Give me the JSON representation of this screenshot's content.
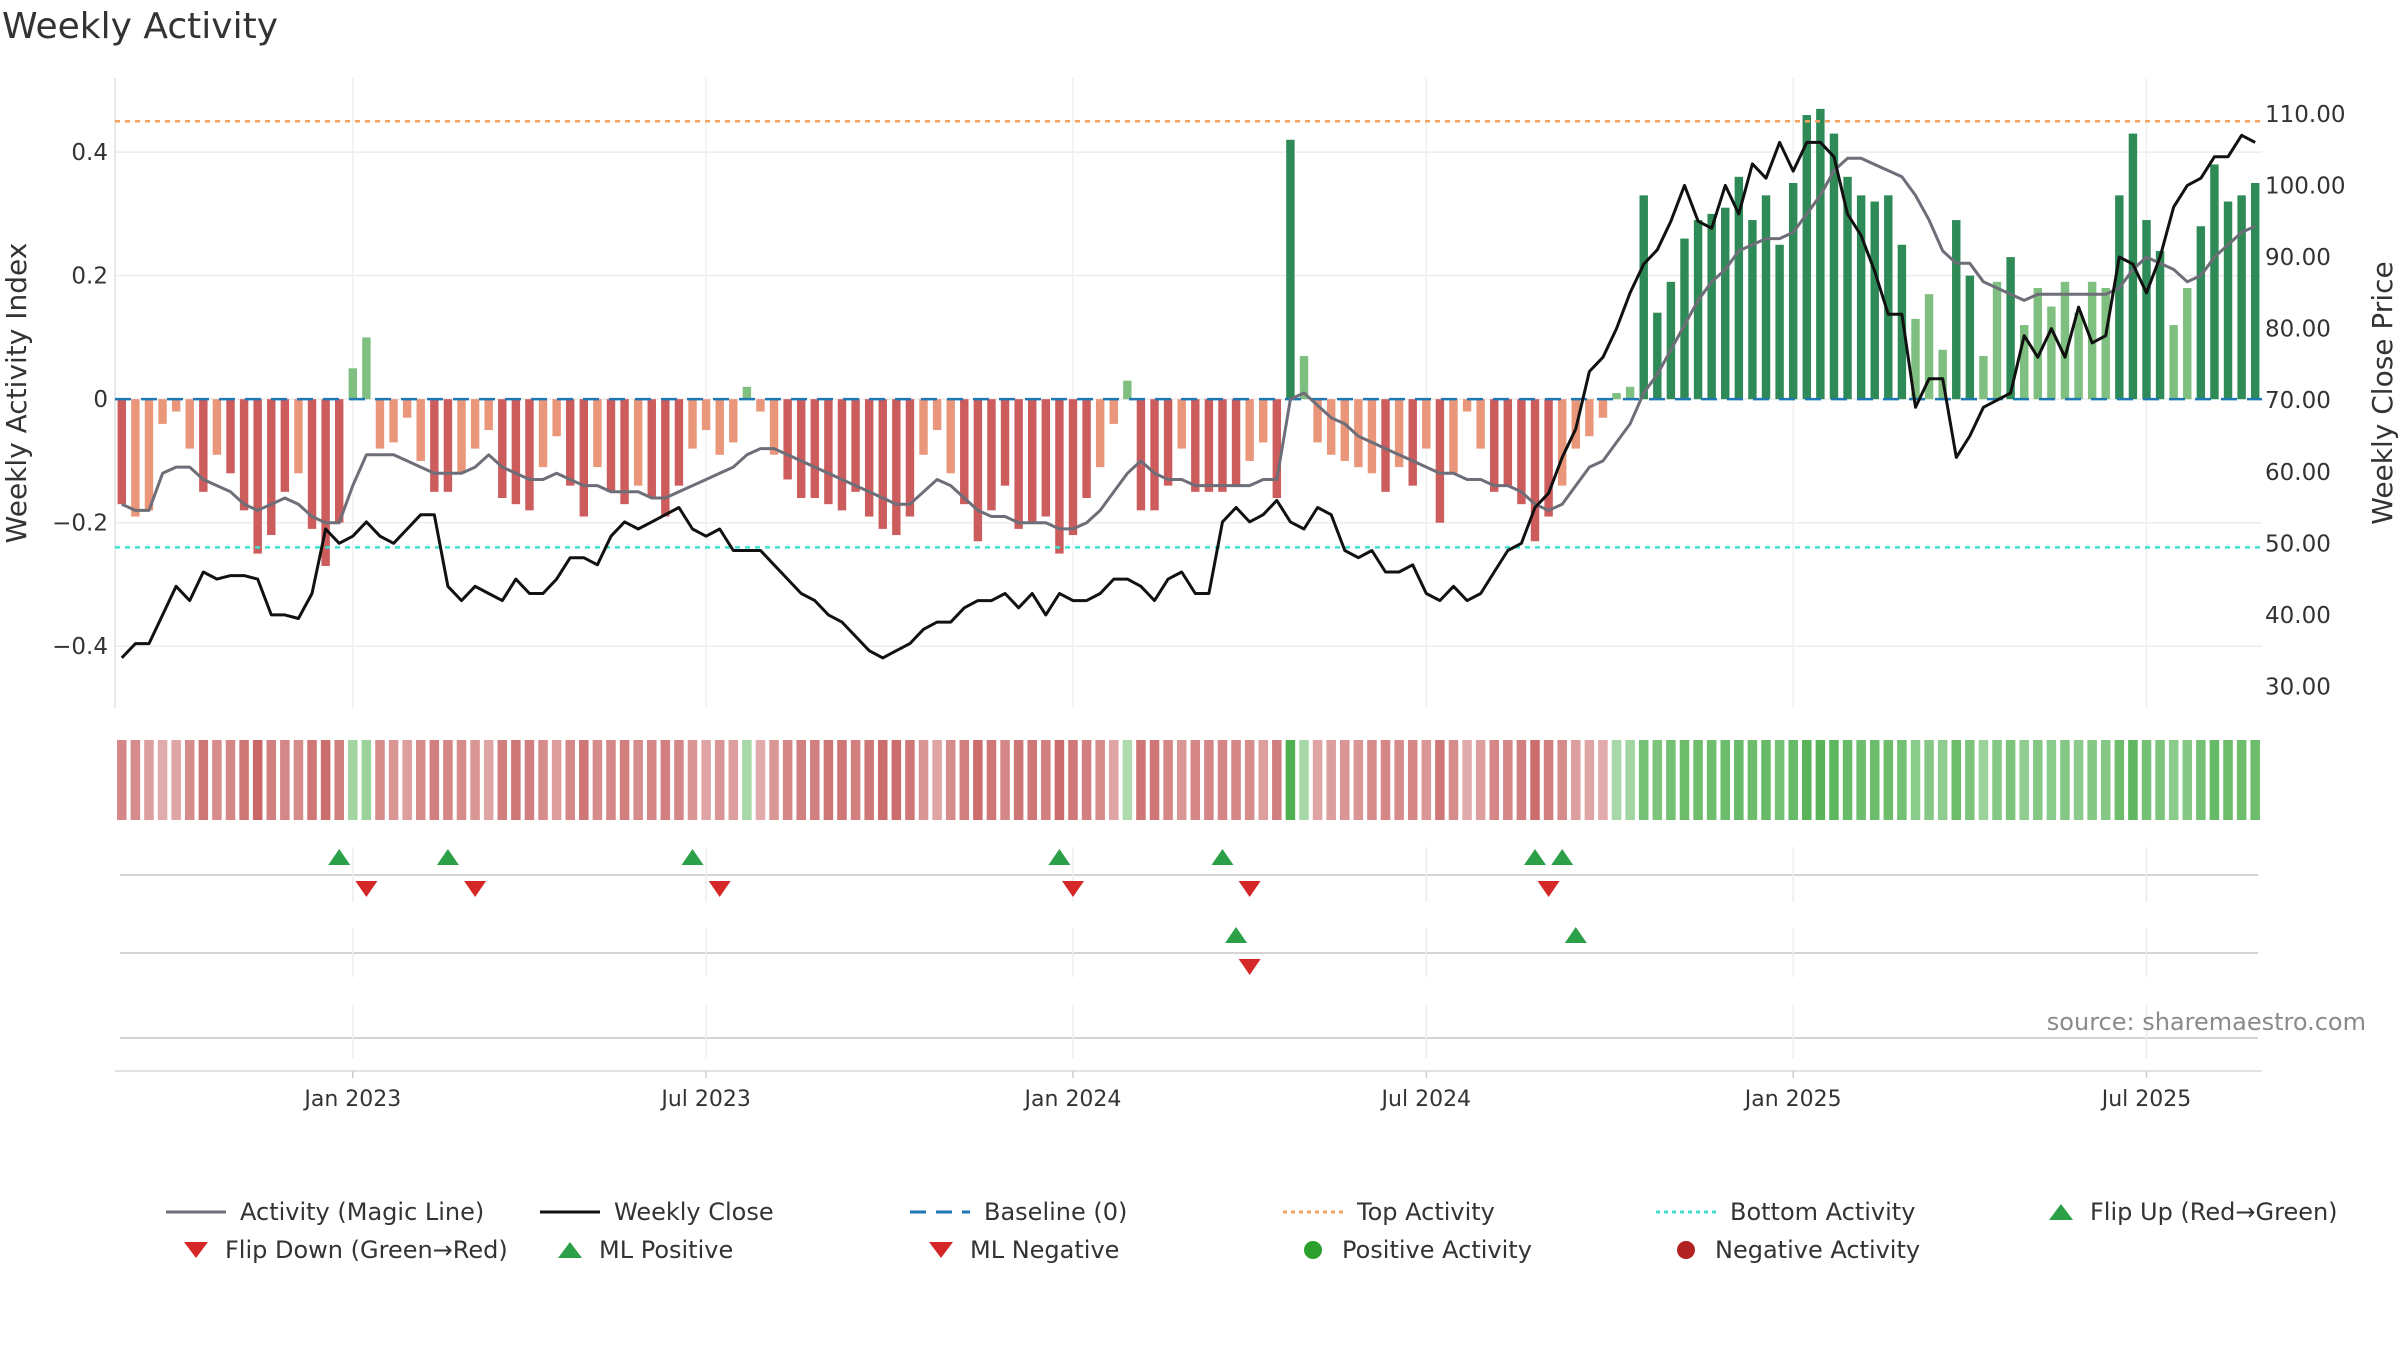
{
  "title": "Weekly Activity",
  "source": "source: sharemaestro.com",
  "colors": {
    "strong_green": "#2e8b57",
    "light_green": "#7fbf7f",
    "strong_red": "#cd5c5c",
    "light_red": "#e9967a",
    "magic_line": "#6e6e78",
    "close_line": "#111111",
    "baseline": "#1f77b4",
    "top": "#f4a460",
    "bottom": "#40e0d0",
    "up_marker": "#2ca048",
    "down_marker": "#d62728"
  },
  "chart_data": {
    "type": "bar",
    "title": "Weekly Activity",
    "ylabel": "Weekly Activity Index",
    "y2label": "Weekly Close Price",
    "ylim": [
      -0.5,
      0.52
    ],
    "y2lim": [
      27,
      115
    ],
    "yticks": [
      -0.4,
      -0.2,
      0,
      0.2,
      0.4
    ],
    "ytick_labels": [
      "−0.4",
      "−0.2",
      "0",
      "0.2",
      "0.4"
    ],
    "y2ticks": [
      30,
      40,
      50,
      60,
      70,
      80,
      90,
      100,
      110
    ],
    "y2tick_labels": [
      "30.00",
      "40.00",
      "50.00",
      "60.00",
      "70.00",
      "80.00",
      "90.00",
      "100.00",
      "110.00"
    ],
    "xtick_labels": [
      "Jan 2023",
      "Jul 2023",
      "Jan 2024",
      "Jul 2024",
      "Jan 2025",
      "Jul 2025"
    ],
    "xtick_weeks": [
      17,
      43,
      70,
      96,
      123,
      149
    ],
    "top_activity": 0.45,
    "bottom_activity": -0.24,
    "baseline": 0,
    "activity": [
      -0.17,
      -0.19,
      -0.18,
      -0.04,
      -0.02,
      -0.08,
      -0.15,
      -0.09,
      -0.12,
      -0.18,
      -0.25,
      -0.22,
      -0.15,
      -0.12,
      -0.21,
      -0.27,
      -0.2,
      0.05,
      0.1,
      -0.08,
      -0.07,
      -0.03,
      -0.1,
      -0.15,
      -0.15,
      -0.12,
      -0.08,
      -0.05,
      -0.16,
      -0.17,
      -0.18,
      -0.11,
      -0.06,
      -0.14,
      -0.19,
      -0.11,
      -0.15,
      -0.17,
      -0.14,
      -0.16,
      -0.19,
      -0.14,
      -0.08,
      -0.05,
      -0.09,
      -0.07,
      0.02,
      -0.02,
      -0.09,
      -0.13,
      -0.16,
      -0.16,
      -0.17,
      -0.18,
      -0.15,
      -0.19,
      -0.21,
      -0.22,
      -0.19,
      -0.09,
      -0.05,
      -0.12,
      -0.17,
      -0.23,
      -0.18,
      -0.14,
      -0.21,
      -0.2,
      -0.19,
      -0.25,
      -0.22,
      -0.16,
      -0.11,
      -0.04,
      0.03,
      -0.18,
      -0.18,
      -0.14,
      -0.08,
      -0.15,
      -0.15,
      -0.15,
      -0.14,
      -0.1,
      -0.07,
      -0.16,
      0.42,
      0.07,
      -0.07,
      -0.09,
      -0.1,
      -0.11,
      -0.12,
      -0.15,
      -0.11,
      -0.14,
      -0.08,
      -0.2,
      -0.12,
      -0.02,
      -0.08,
      -0.15,
      -0.14,
      -0.17,
      -0.23,
      -0.19,
      -0.14,
      -0.08,
      -0.06,
      -0.03,
      0.01,
      0.02,
      0.33,
      0.14,
      0.19,
      0.26,
      0.29,
      0.3,
      0.31,
      0.36,
      0.29,
      0.33,
      0.25,
      0.35,
      0.46,
      0.47,
      0.43,
      0.36,
      0.33,
      0.32,
      0.33,
      0.25,
      0.13,
      0.17,
      0.08,
      0.29,
      0.2,
      0.07,
      0.19,
      0.23,
      0.12,
      0.18,
      0.15,
      0.19,
      0.14,
      0.19,
      0.18,
      0.33,
      0.43,
      0.29,
      0.24,
      0.12,
      0.18,
      0.28,
      0.38,
      0.32,
      0.33,
      0.35
    ],
    "magic_line": [
      -0.17,
      -0.18,
      -0.18,
      -0.12,
      -0.11,
      -0.11,
      -0.13,
      -0.14,
      -0.15,
      -0.17,
      -0.18,
      -0.17,
      -0.16,
      -0.17,
      -0.19,
      -0.2,
      -0.2,
      -0.14,
      -0.09,
      -0.09,
      -0.09,
      -0.1,
      -0.11,
      -0.12,
      -0.12,
      -0.12,
      -0.11,
      -0.09,
      -0.11,
      -0.12,
      -0.13,
      -0.13,
      -0.12,
      -0.13,
      -0.14,
      -0.14,
      -0.15,
      -0.15,
      -0.15,
      -0.16,
      -0.16,
      -0.15,
      -0.14,
      -0.13,
      -0.12,
      -0.11,
      -0.09,
      -0.08,
      -0.08,
      -0.09,
      -0.1,
      -0.11,
      -0.12,
      -0.13,
      -0.14,
      -0.15,
      -0.16,
      -0.17,
      -0.17,
      -0.15,
      -0.13,
      -0.14,
      -0.16,
      -0.18,
      -0.19,
      -0.19,
      -0.2,
      -0.2,
      -0.2,
      -0.21,
      -0.21,
      -0.2,
      -0.18,
      -0.15,
      -0.12,
      -0.1,
      -0.12,
      -0.13,
      -0.13,
      -0.14,
      -0.14,
      -0.14,
      -0.14,
      -0.14,
      -0.13,
      -0.13,
      0,
      0.01,
      -0.01,
      -0.03,
      -0.04,
      -0.06,
      -0.07,
      -0.08,
      -0.09,
      -0.1,
      -0.11,
      -0.12,
      -0.12,
      -0.13,
      -0.13,
      -0.14,
      -0.14,
      -0.15,
      -0.17,
      -0.18,
      -0.17,
      -0.14,
      -0.11,
      -0.1,
      -0.07,
      -0.04,
      0.01,
      0.04,
      0.08,
      0.12,
      0.16,
      0.19,
      0.21,
      0.24,
      0.25,
      0.26,
      0.26,
      0.27,
      0.3,
      0.33,
      0.37,
      0.39,
      0.39,
      0.38,
      0.37,
      0.36,
      0.33,
      0.29,
      0.24,
      0.22,
      0.22,
      0.19,
      0.18,
      0.17,
      0.16,
      0.17,
      0.17,
      0.17,
      0.17,
      0.17,
      0.17,
      0.18,
      0.21,
      0.23,
      0.22,
      0.21,
      0.19,
      0.2,
      0.23,
      0.25,
      0.27,
      0.28
    ],
    "weekly_close": [
      34,
      36,
      36,
      40,
      44,
      42,
      46,
      45,
      45.5,
      45.5,
      45,
      40,
      40,
      39.5,
      43,
      52,
      50,
      51,
      53,
      51,
      50,
      52,
      54,
      54,
      44,
      42,
      44,
      43,
      42,
      45,
      43,
      43,
      45,
      48,
      48,
      47,
      51,
      53,
      52,
      53,
      54,
      55,
      52,
      51,
      52,
      49,
      49,
      49,
      47,
      45,
      43,
      42,
      40,
      39,
      37,
      35,
      34,
      35,
      36,
      38,
      39,
      39,
      41,
      42,
      42,
      43,
      41,
      43,
      40,
      43,
      42,
      42,
      43,
      45,
      45,
      44,
      42,
      45,
      46,
      43,
      43,
      53,
      55,
      53,
      54,
      56,
      53,
      52,
      55,
      54,
      49,
      48,
      49,
      46,
      46,
      47,
      43,
      42,
      44,
      42,
      43,
      46,
      49,
      50,
      55,
      57,
      62,
      66,
      74,
      76,
      80,
      85,
      89,
      91,
      95,
      100,
      95,
      94,
      100,
      96,
      103,
      101,
      106,
      102,
      106,
      106,
      104,
      96,
      93,
      88,
      82,
      82,
      69,
      73,
      73,
      62,
      65,
      69,
      70,
      71,
      79,
      76,
      80,
      76,
      83,
      78,
      79,
      90,
      89,
      85,
      90,
      97,
      100,
      101,
      104,
      104,
      107,
      106
    ],
    "activity_strength": [
      0.5,
      0.45,
      0.35,
      0.25,
      0.3,
      0.45,
      0.6,
      0.45,
      0.5,
      0.6,
      0.7,
      0.55,
      0.5,
      0.45,
      0.6,
      0.65,
      0.55,
      0.35,
      0.4,
      0.45,
      0.4,
      0.35,
      0.45,
      0.55,
      0.5,
      0.45,
      0.4,
      0.3,
      0.55,
      0.6,
      0.55,
      0.45,
      0.35,
      0.5,
      0.6,
      0.45,
      0.5,
      0.55,
      0.45,
      0.5,
      0.55,
      0.5,
      0.4,
      0.3,
      0.4,
      0.35,
      0.3,
      0.25,
      0.4,
      0.5,
      0.55,
      0.55,
      0.6,
      0.6,
      0.55,
      0.6,
      0.65,
      0.65,
      0.6,
      0.4,
      0.3,
      0.45,
      0.55,
      0.65,
      0.6,
      0.5,
      0.6,
      0.6,
      0.55,
      0.65,
      0.6,
      0.55,
      0.45,
      0.3,
      0.25,
      0.6,
      0.6,
      0.5,
      0.4,
      0.5,
      0.5,
      0.5,
      0.5,
      0.45,
      0.35,
      0.55,
      0.9,
      0.3,
      0.3,
      0.35,
      0.4,
      0.4,
      0.45,
      0.5,
      0.45,
      0.5,
      0.4,
      0.6,
      0.45,
      0.25,
      0.35,
      0.5,
      0.5,
      0.55,
      0.65,
      0.55,
      0.45,
      0.35,
      0.3,
      0.25,
      0.3,
      0.35,
      0.65,
      0.6,
      0.65,
      0.7,
      0.7,
      0.7,
      0.7,
      0.75,
      0.7,
      0.75,
      0.65,
      0.75,
      0.85,
      0.85,
      0.8,
      0.75,
      0.7,
      0.7,
      0.7,
      0.65,
      0.5,
      0.55,
      0.45,
      0.7,
      0.6,
      0.4,
      0.55,
      0.6,
      0.45,
      0.55,
      0.5,
      0.55,
      0.5,
      0.55,
      0.55,
      0.7,
      0.8,
      0.65,
      0.6,
      0.5,
      0.55,
      0.65,
      0.75,
      0.7,
      0.7,
      0.7
    ],
    "flip_up_weeks": [
      16,
      24,
      42,
      69,
      81,
      104,
      106
    ],
    "flip_down_weeks": [
      18,
      26,
      44,
      70,
      83,
      105
    ],
    "ml_positive_weeks": [
      82,
      107
    ],
    "ml_negative_weeks": [
      83
    ]
  },
  "legend": {
    "magic": "Activity (Magic Line)",
    "close": "Weekly Close",
    "baseline": "Baseline (0)",
    "top": "Top Activity",
    "bottom": "Bottom Activity",
    "flip_up": "Flip Up (Red→Green)",
    "flip_down": "Flip Down (Green→Red)",
    "ml_pos": "ML Positive",
    "ml_neg": "ML Negative",
    "pos_act": "Positive Activity",
    "neg_act": "Negative Activity"
  }
}
